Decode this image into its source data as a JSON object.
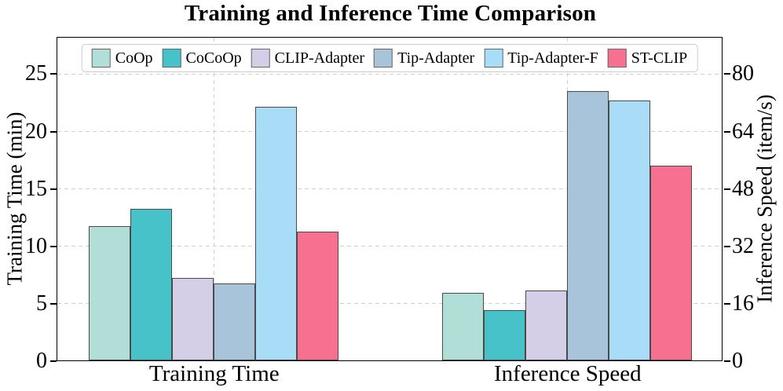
{
  "chart_data": {
    "type": "bar",
    "title": "Training and Inference Time Comparison",
    "categories": [
      "Training Time",
      "Inference Speed"
    ],
    "series": [
      {
        "name": "CoOp",
        "color": "#b2ded8",
        "values": [
          11.7,
          18.9
        ]
      },
      {
        "name": "CoCoOp",
        "color": "#46c2c8",
        "values": [
          13.2,
          14.1
        ]
      },
      {
        "name": "CLIP-Adapter",
        "color": "#d4cfe6",
        "values": [
          7.2,
          19.4
        ]
      },
      {
        "name": "Tip-Adapter",
        "color": "#a8c4da",
        "values": [
          6.7,
          75.2
        ]
      },
      {
        "name": "Tip-Adapter-F",
        "color": "#a9dcf6",
        "values": [
          22.1,
          72.6
        ]
      },
      {
        "name": "ST-CLIP",
        "color": "#f7708f",
        "values": [
          11.2,
          54.4
        ]
      }
    ],
    "left_axis": {
      "label": "Training Time (min)",
      "ticks": [
        0,
        5,
        10,
        15,
        20,
        25
      ],
      "range": [
        0,
        28.125
      ],
      "applies_to_category": "Training Time"
    },
    "right_axis": {
      "label": "Inference Speed (item/s)",
      "ticks": [
        0,
        16,
        32,
        48,
        64,
        80
      ],
      "range": [
        0,
        90
      ],
      "applies_to_category": "Inference Speed"
    },
    "legend_position": "top center inside plot, single row",
    "grid": "dashed gray, horizontal at left-axis ticks and vertical at category centers",
    "bar_edge_color": "#4a4a4a"
  }
}
